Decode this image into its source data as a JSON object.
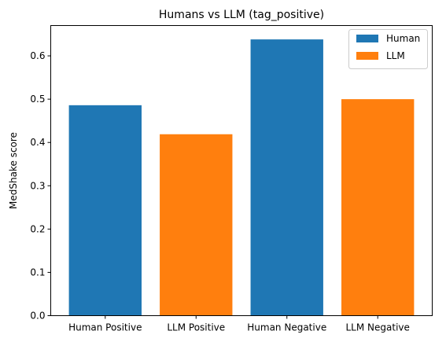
{
  "chart_data": {
    "type": "bar",
    "title": "Humans vs LLM (tag_positive)",
    "xlabel": "",
    "ylabel": "MedShake score",
    "categories": [
      "Human Positive",
      "LLM Positive",
      "Human Negative",
      "LLM Negative"
    ],
    "values": [
      0.486,
      0.419,
      0.638,
      0.5
    ],
    "bar_series": [
      "Human",
      "LLM",
      "Human",
      "LLM"
    ],
    "series": [
      {
        "name": "Human",
        "color": "#1f77b4"
      },
      {
        "name": "LLM",
        "color": "#ff7f0e"
      }
    ],
    "ylim": [
      0,
      0.67
    ],
    "yticks": [
      "0.0",
      "0.1",
      "0.2",
      "0.3",
      "0.4",
      "0.5",
      "0.6"
    ],
    "ytick_values": [
      0.0,
      0.1,
      0.2,
      0.3,
      0.4,
      0.5,
      0.6
    ],
    "grid": false,
    "legend_position": "top-right"
  }
}
